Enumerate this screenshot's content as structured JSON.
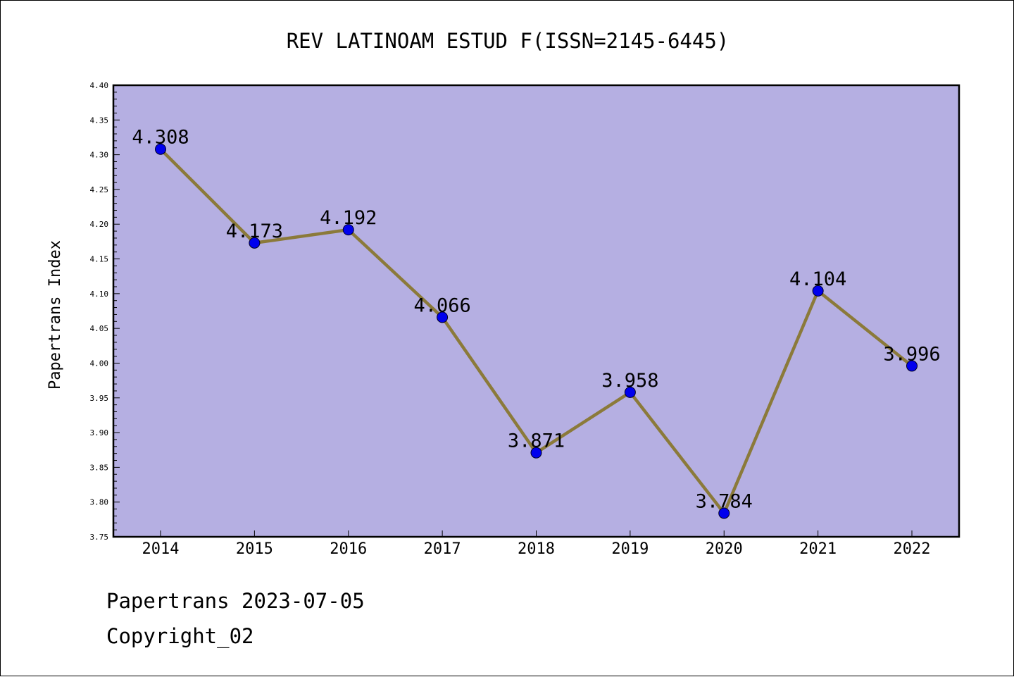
{
  "chart_data": {
    "type": "line",
    "title": "REV LATINOAM ESTUD F(ISSN=2145-6445)",
    "ylabel": "Papertrans Index",
    "xlabel": "",
    "categories": [
      "2014",
      "2015",
      "2016",
      "2017",
      "2018",
      "2019",
      "2020",
      "2021",
      "2022"
    ],
    "series": [
      {
        "values": [
          4.308,
          4.173,
          4.192,
          4.066,
          3.871,
          3.958,
          3.784,
          4.104,
          3.996
        ],
        "labels": [
          "4.308",
          "4.173",
          "4.192",
          "4.066",
          "3.871",
          "3.958",
          "3.784",
          "4.104",
          "3.996"
        ]
      }
    ],
    "ylim": [
      3.75,
      4.4
    ],
    "yticks": [
      "3.75",
      "3.80",
      "3.85",
      "3.90",
      "3.95",
      "4.00",
      "4.05",
      "4.10",
      "4.15",
      "4.20",
      "4.25",
      "4.30",
      "4.35",
      "4.40"
    ],
    "grid": false,
    "legend": "none",
    "colors": {
      "plot_background": "#b5afe2",
      "line": "#8b7a3a",
      "marker": "#0000ee",
      "frame": "#000000"
    }
  },
  "footer": {
    "date_line": "Papertrans 2023-07-05",
    "copyright_line": "Copyright_02"
  }
}
